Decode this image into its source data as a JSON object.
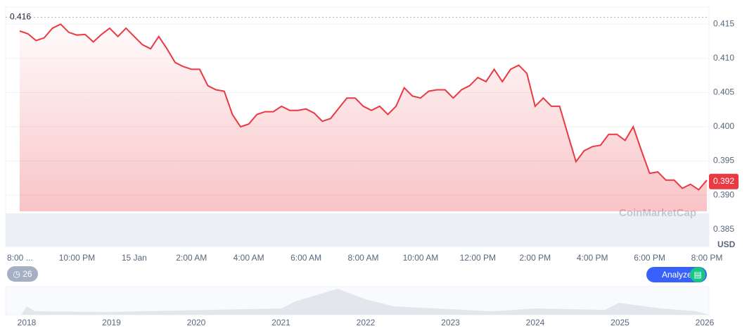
{
  "chart_data": {
    "type": "line",
    "unit_label": "USD",
    "watermark": "CoinMarketCap",
    "ylim": [
      0.3825,
      0.4175
    ],
    "yticks": [
      0.385,
      {
        "value": 0.39,
        "label": "0.390"
      },
      0.395,
      {
        "value": 0.4,
        "label": "0.400"
      },
      0.405,
      {
        "value": 0.41,
        "label": "0.410"
      },
      0.415
    ],
    "grid": true,
    "x_labels": [
      "8:00 ...",
      "10:00 PM",
      "15 Jan",
      "2:00 AM",
      "4:00 AM",
      "6:00 AM",
      "8:00 AM",
      "10:00 AM",
      "12:00 PM",
      "2:00 PM",
      "4:00 PM",
      "6:00 PM",
      "8:00 PM"
    ],
    "series": [
      {
        "name": "Price",
        "color": "#ea3943",
        "values": [
          0.414,
          0.4136,
          0.4126,
          0.413,
          0.4144,
          0.415,
          0.4138,
          0.4134,
          0.4135,
          0.4124,
          0.4135,
          0.4144,
          0.4132,
          0.4144,
          0.4132,
          0.412,
          0.4114,
          0.4132,
          0.4114,
          0.4094,
          0.4088,
          0.4084,
          0.4084,
          0.406,
          0.4054,
          0.4052,
          0.4018,
          0.4,
          0.4004,
          0.4018,
          0.4022,
          0.4022,
          0.403,
          0.4024,
          0.4024,
          0.4026,
          0.402,
          0.4008,
          0.4012,
          0.4027,
          0.4042,
          0.4042,
          0.403,
          0.4024,
          0.403,
          0.4018,
          0.403,
          0.4057,
          0.4045,
          0.4042,
          0.4052,
          0.4054,
          0.4054,
          0.4042,
          0.4054,
          0.406,
          0.4072,
          0.4066,
          0.4084,
          0.4066,
          0.4084,
          0.409,
          0.4078,
          0.403,
          0.4042,
          0.403,
          0.403,
          0.3989,
          0.3949,
          0.3965,
          0.3971,
          0.3973,
          0.3989,
          0.3989,
          0.398,
          0.4,
          0.3965,
          0.3932,
          0.3934,
          0.3922,
          0.3922,
          0.391,
          0.3916,
          0.3908,
          0.3922
        ]
      }
    ],
    "max_marker": 0.416,
    "current_price": 0.392,
    "navigator_years": [
      2018,
      2019,
      2020,
      2021,
      2022,
      2023,
      2024,
      2025,
      2026
    ],
    "buttons": {
      "history": "26",
      "analyze": "Analyze"
    }
  }
}
